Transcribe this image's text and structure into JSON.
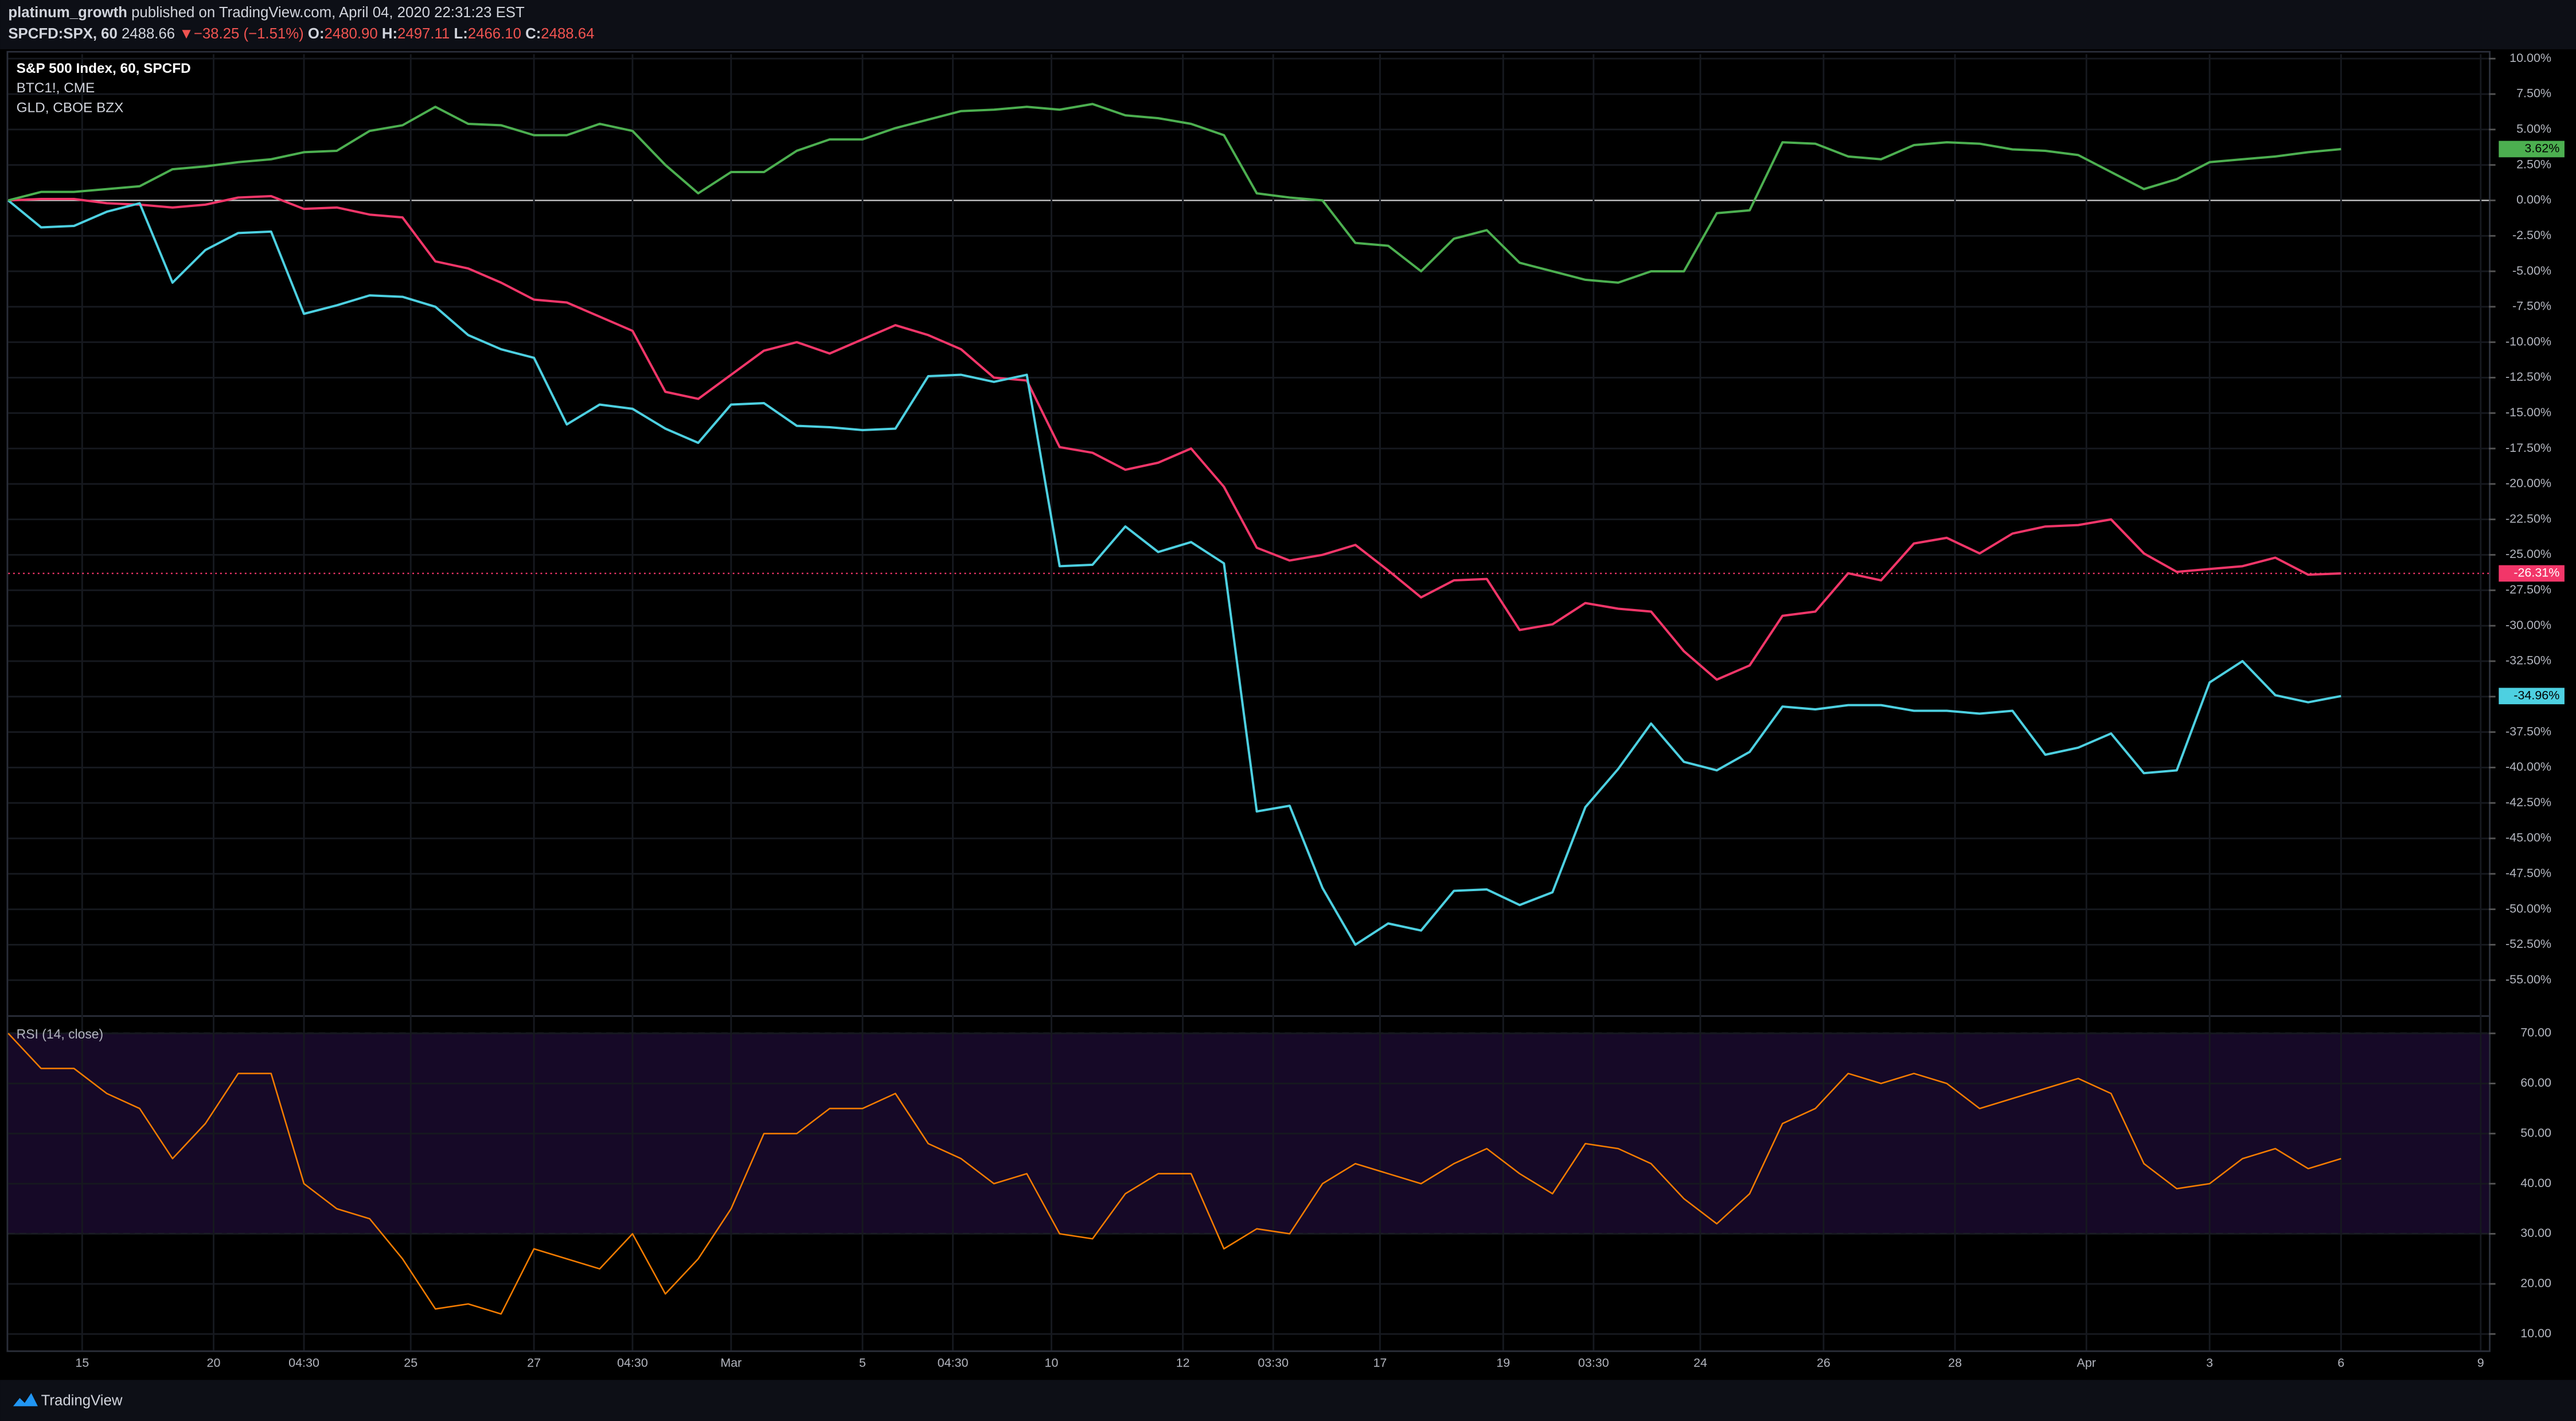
{
  "header": {
    "author": "platinum_growth",
    "published": "published on TradingView.com, April 04, 2020 22:31:23 EST",
    "symbol": "SPCFD:SPX, 60",
    "last": "2488.66",
    "arrow": "▼",
    "change": "−38.25 (−1.51%)",
    "open_label": "O:",
    "open": "2480.90",
    "high_label": "H:",
    "high": "2497.11",
    "low_label": "L:",
    "low": "2466.10",
    "close_label": "C:",
    "close": "2488.64"
  },
  "chart_data": [
    {
      "type": "line",
      "ylim": [
        -57.3,
        10.3
      ],
      "xlim": [
        0,
        302
      ],
      "grid": true,
      "baseline": 0,
      "x": [
        0,
        4,
        8,
        12,
        16,
        20,
        24,
        28,
        32,
        36,
        40,
        44,
        48,
        52,
        56,
        60,
        64,
        68,
        72,
        76,
        80,
        84,
        88,
        92,
        96,
        100,
        104,
        108,
        112,
        116,
        120,
        124,
        128,
        132,
        136,
        140,
        144,
        148,
        152,
        156,
        160,
        164,
        168,
        172,
        176,
        180,
        184,
        188,
        192,
        196,
        200,
        204,
        208,
        212,
        216,
        220,
        224,
        228,
        232,
        236,
        240,
        244,
        248,
        252,
        256,
        260,
        264,
        268,
        272,
        276,
        280,
        284
      ],
      "yticks": [
        {
          "value": 10,
          "label": "10.00%"
        },
        {
          "value": 7.5,
          "label": "7.50%"
        },
        {
          "value": 5,
          "label": "5.00%"
        },
        {
          "value": 2.5,
          "label": "2.50%"
        },
        {
          "value": 0,
          "label": "0.00%"
        },
        {
          "value": -2.5,
          "label": "-2.50%"
        },
        {
          "value": -5,
          "label": "-5.00%"
        },
        {
          "value": -7.5,
          "label": "-7.50%"
        },
        {
          "value": -10,
          "label": "-10.00%"
        },
        {
          "value": -12.5,
          "label": "-12.50%"
        },
        {
          "value": -15,
          "label": "-15.00%"
        },
        {
          "value": -17.5,
          "label": "-17.50%"
        },
        {
          "value": -20,
          "label": "-20.00%"
        },
        {
          "value": -22.5,
          "label": "-22.50%"
        },
        {
          "value": -25,
          "label": "-25.00%"
        },
        {
          "value": -27.5,
          "label": "-27.50%"
        },
        {
          "value": -30,
          "label": "-30.00%"
        },
        {
          "value": -32.5,
          "label": "-32.50%"
        },
        {
          "value": -35,
          "label": "-35.00%"
        },
        {
          "value": -37.5,
          "label": "-37.50%"
        },
        {
          "value": -40,
          "label": "-40.00%"
        },
        {
          "value": -42.5,
          "label": "-42.50%"
        },
        {
          "value": -45,
          "label": "-45.00%"
        },
        {
          "value": -47.5,
          "label": "-47.50%"
        },
        {
          "value": -50,
          "label": "-50.00%"
        },
        {
          "value": -52.5,
          "label": "-52.50%"
        },
        {
          "value": -55,
          "label": "-55.00%"
        }
      ],
      "series": [
        {
          "name": "S&P 500 Index, 60, SPCFD",
          "color": "#f23669",
          "last_label": "-26.31%",
          "values": [
            0,
            0.1,
            0.1,
            -0.2,
            -0.3,
            -0.5,
            -0.3,
            0.2,
            0.3,
            -0.6,
            -0.5,
            -1.0,
            -1.2,
            -4.3,
            -4.8,
            -5.8,
            -7.0,
            -7.2,
            -8.2,
            -9.2,
            -13.5,
            -14.0,
            -12.3,
            -10.6,
            -10.0,
            -10.8,
            -9.8,
            -8.8,
            -9.5,
            -10.5,
            -12.5,
            -12.7,
            -17.4,
            -17.8,
            -19.0,
            -18.5,
            -17.5,
            -20.2,
            -24.5,
            -25.4,
            -25.0,
            -24.3,
            -26.1,
            -28.0,
            -26.8,
            -26.7,
            -30.3,
            -29.9,
            -28.4,
            -28.8,
            -29.0,
            -31.8,
            -33.8,
            -32.8,
            -29.3,
            -29.0,
            -26.3,
            -26.8,
            -24.2,
            -23.8,
            -24.9,
            -23.5,
            -23.0,
            -22.9,
            -22.5,
            -24.9,
            -26.2,
            -26.0,
            -25.8,
            -25.2,
            -26.4,
            -26.31
          ]
        },
        {
          "name": "BTC1!, CME",
          "color": "#4dd0e1",
          "last_label": "-34.96%",
          "values": [
            0,
            -1.9,
            -1.8,
            -0.8,
            -0.2,
            -5.8,
            -3.5,
            -2.3,
            -2.2,
            -8.0,
            -7.4,
            -6.7,
            -6.8,
            -7.5,
            -9.5,
            -10.5,
            -11.1,
            -15.8,
            -14.4,
            -14.7,
            -16.1,
            -17.1,
            -14.4,
            -14.3,
            -15.9,
            -16.0,
            -16.2,
            -16.1,
            -12.4,
            -12.3,
            -12.8,
            -12.3,
            -25.8,
            -25.7,
            -23.0,
            -24.8,
            -24.1,
            -25.6,
            -43.1,
            -42.7,
            -48.5,
            -52.5,
            -51.0,
            -51.5,
            -48.7,
            -48.6,
            -49.7,
            -48.8,
            -42.8,
            -40.1,
            -36.9,
            -39.6,
            -40.2,
            -38.9,
            -35.7,
            -35.9,
            -35.6,
            -35.6,
            -36.0,
            -36.0,
            -36.2,
            -36.0,
            -39.1,
            -38.6,
            -37.6,
            -40.4,
            -40.2,
            -34.0,
            -32.5,
            -34.9,
            -35.4,
            -34.96
          ]
        },
        {
          "name": "GLD, CBOE BZX",
          "color": "#4caf50",
          "last_label": "3.62%",
          "values": [
            0,
            0.6,
            0.6,
            0.8,
            1.0,
            2.2,
            2.4,
            2.7,
            2.9,
            3.4,
            3.5,
            4.9,
            5.3,
            6.6,
            5.4,
            5.3,
            4.6,
            4.6,
            5.4,
            4.9,
            2.5,
            0.5,
            2.0,
            2.0,
            3.5,
            4.3,
            4.3,
            5.1,
            5.7,
            6.3,
            6.4,
            6.6,
            6.4,
            6.8,
            6.0,
            5.8,
            5.4,
            4.6,
            0.5,
            0.2,
            0.0,
            -3.0,
            -3.2,
            -5.0,
            -2.7,
            -2.1,
            -4.4,
            -5.0,
            -5.6,
            -5.8,
            -5.0,
            -5.0,
            -0.9,
            -0.7,
            4.1,
            4.0,
            3.1,
            2.9,
            3.9,
            4.1,
            4.0,
            3.6,
            3.5,
            3.2,
            2.0,
            0.8,
            1.5,
            2.7,
            2.9,
            3.1,
            3.4,
            3.62
          ]
        }
      ]
    },
    {
      "type": "line",
      "title": "RSI (14, close)",
      "ylim": [
        6.7,
        72.9
      ],
      "xlim": [
        0,
        302
      ],
      "grid": true,
      "bands": [
        30,
        70
      ],
      "x": [
        0,
        4,
        8,
        12,
        16,
        20,
        24,
        28,
        32,
        36,
        40,
        44,
        48,
        52,
        56,
        60,
        64,
        68,
        72,
        76,
        80,
        84,
        88,
        92,
        96,
        100,
        104,
        108,
        112,
        116,
        120,
        124,
        128,
        132,
        136,
        140,
        144,
        148,
        152,
        156,
        160,
        164,
        168,
        172,
        176,
        180,
        184,
        188,
        192,
        196,
        200,
        204,
        208,
        212,
        216,
        220,
        224,
        228,
        232,
        236,
        240,
        244,
        248,
        252,
        256,
        260,
        264,
        268,
        272,
        276,
        280,
        284
      ],
      "yticks": [
        {
          "value": 70,
          "label": "70.00"
        },
        {
          "value": 60,
          "label": "60.00"
        },
        {
          "value": 50,
          "label": "50.00"
        },
        {
          "value": 40,
          "label": "40.00"
        },
        {
          "value": 30,
          "label": "30.00"
        },
        {
          "value": 20,
          "label": "20.00"
        },
        {
          "value": 10,
          "label": "10.00"
        }
      ],
      "xticks": [
        {
          "value": 9,
          "label": "15"
        },
        {
          "value": 25,
          "label": "20"
        },
        {
          "value": 36,
          "label": "04:30"
        },
        {
          "value": 49,
          "label": "25"
        },
        {
          "value": 64,
          "label": "27"
        },
        {
          "value": 76,
          "label": "04:30"
        },
        {
          "value": 88,
          "label": "Mar"
        },
        {
          "value": 104,
          "label": "5"
        },
        {
          "value": 115,
          "label": "04:30"
        },
        {
          "value": 127,
          "label": "10"
        },
        {
          "value": 143,
          "label": "12"
        },
        {
          "value": 154,
          "label": "03:30"
        },
        {
          "value": 167,
          "label": "17"
        },
        {
          "value": 182,
          "label": "19"
        },
        {
          "value": 193,
          "label": "03:30"
        },
        {
          "value": 206,
          "label": "24"
        },
        {
          "value": 221,
          "label": "26"
        },
        {
          "value": 237,
          "label": "28"
        },
        {
          "value": 253,
          "label": "Apr"
        },
        {
          "value": 268,
          "label": "3"
        },
        {
          "value": 284,
          "label": "6"
        },
        {
          "value": 301,
          "label": "9"
        }
      ],
      "series": [
        {
          "name": "RSI",
          "color": "#f57c00",
          "values": [
            70,
            63,
            63,
            58,
            55,
            45,
            52,
            62,
            62,
            40,
            35,
            33,
            25,
            15,
            16,
            14,
            27,
            25,
            23,
            30,
            18,
            25,
            35,
            50,
            50,
            55,
            55,
            58,
            48,
            45,
            40,
            42,
            30,
            29,
            38,
            42,
            42,
            27,
            31,
            30,
            40,
            44,
            42,
            40,
            44,
            47,
            42,
            38,
            48,
            47,
            44,
            37,
            32,
            38,
            52,
            55,
            62,
            60,
            62,
            60,
            55,
            57,
            59,
            61,
            58,
            44,
            39,
            40,
            45,
            47,
            43,
            45
          ]
        }
      ]
    }
  ],
  "footer": {
    "brand": "TradingView"
  }
}
